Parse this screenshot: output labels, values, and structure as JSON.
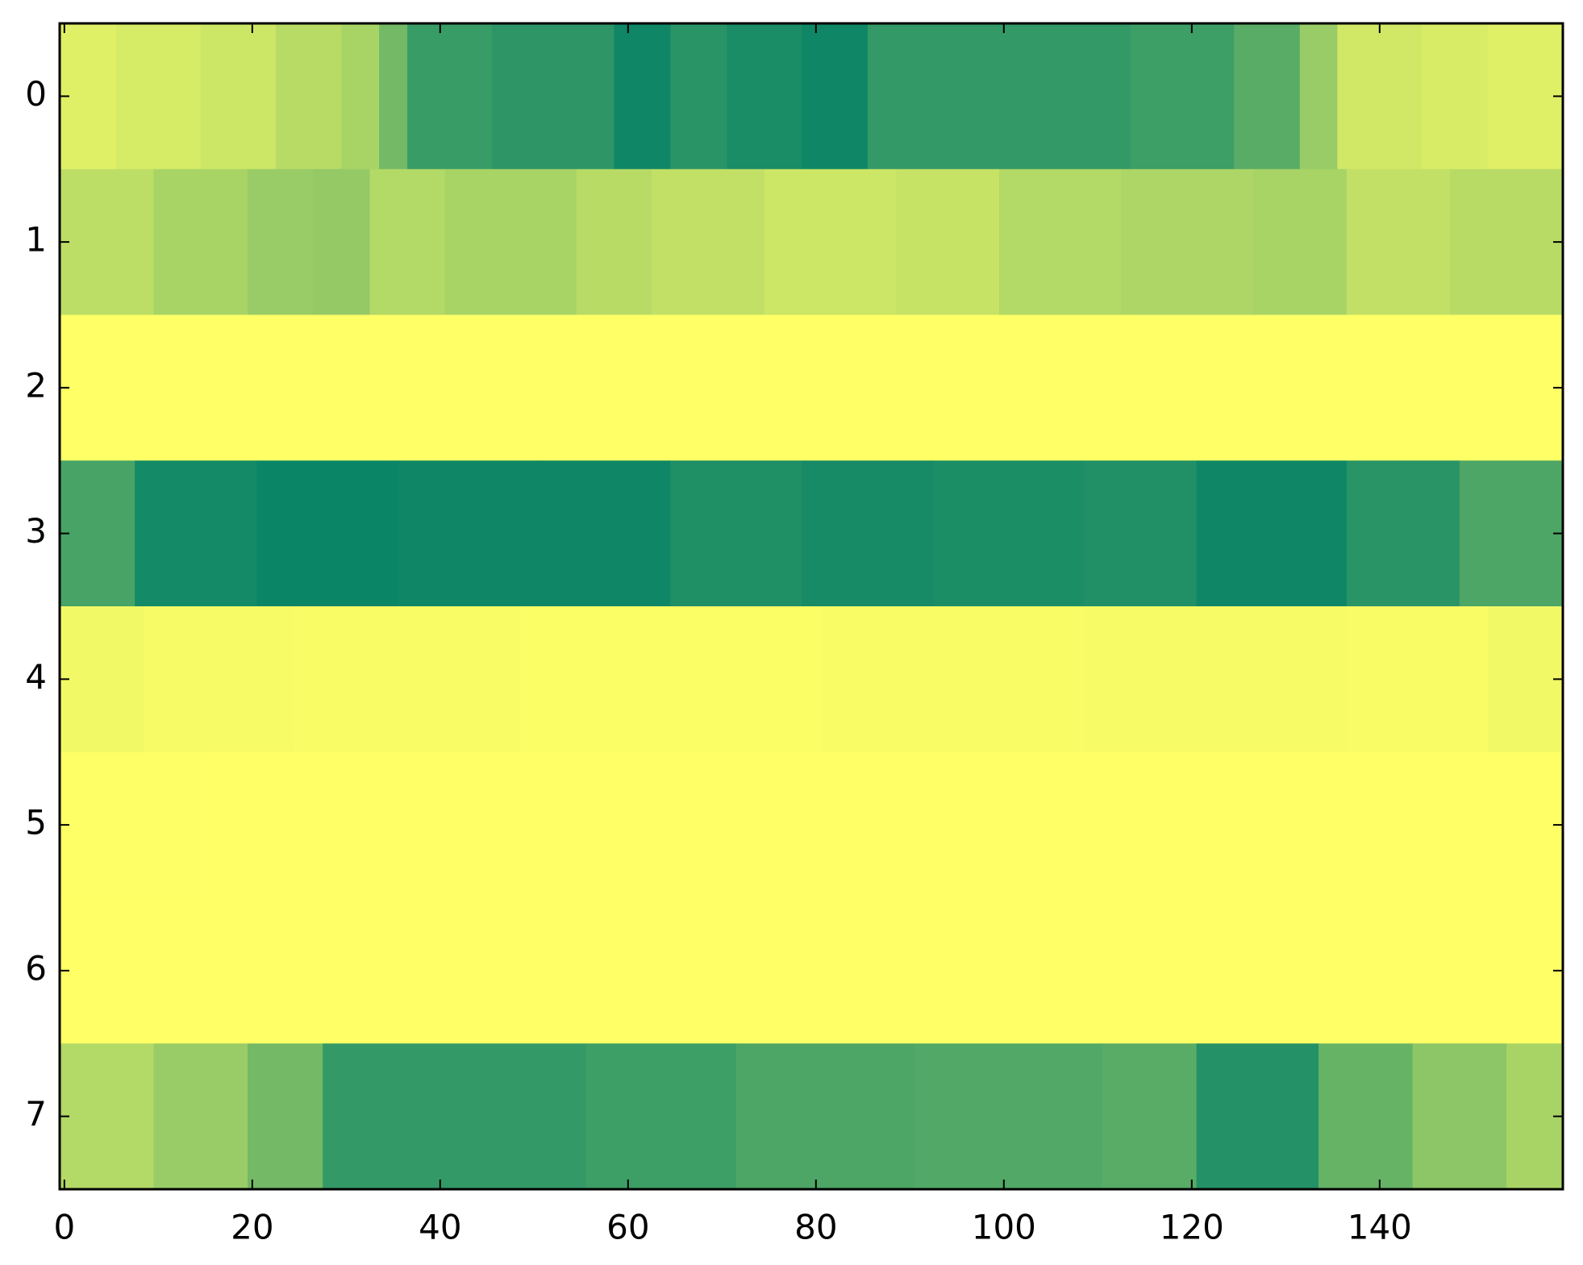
{
  "chart_data": {
    "type": "heatmap",
    "title": "",
    "xlabel": "",
    "ylabel": "",
    "colormap": "summer",
    "grid": false,
    "xlim": [
      -0.5,
      159.5
    ],
    "ylim": [
      7.5,
      -0.5
    ],
    "x_ticks": [
      0,
      20,
      40,
      60,
      80,
      100,
      120,
      140
    ],
    "x_tick_labels": [
      "0",
      "20",
      "40",
      "60",
      "80",
      "100",
      "120",
      "140"
    ],
    "y_ticks": [
      0,
      1,
      2,
      3,
      4,
      5,
      6,
      7
    ],
    "y_tick_labels": [
      "0",
      "1",
      "2",
      "3",
      "4",
      "5",
      "6",
      "7"
    ],
    "n_columns": 160,
    "rows": [
      {
        "row": 0,
        "segments": [
          {
            "from": 0,
            "to": 5,
            "level": 0.88
          },
          {
            "from": 6,
            "to": 14,
            "level": 0.84
          },
          {
            "from": 15,
            "to": 22,
            "level": 0.8
          },
          {
            "from": 23,
            "to": 29,
            "level": 0.72
          },
          {
            "from": 30,
            "to": 33,
            "level": 0.66
          },
          {
            "from": 34,
            "to": 36,
            "level": 0.45
          },
          {
            "from": 37,
            "to": 45,
            "level": 0.22
          },
          {
            "from": 46,
            "to": 58,
            "level": 0.18
          },
          {
            "from": 59,
            "to": 64,
            "level": 0.06
          },
          {
            "from": 65,
            "to": 70,
            "level": 0.16
          },
          {
            "from": 71,
            "to": 78,
            "level": 0.1
          },
          {
            "from": 79,
            "to": 85,
            "level": 0.06
          },
          {
            "from": 86,
            "to": 97,
            "level": 0.2
          },
          {
            "from": 98,
            "to": 113,
            "level": 0.2
          },
          {
            "from": 114,
            "to": 124,
            "level": 0.24
          },
          {
            "from": 125,
            "to": 131,
            "level": 0.35
          },
          {
            "from": 132,
            "to": 135,
            "level": 0.6
          },
          {
            "from": 136,
            "to": 144,
            "level": 0.82
          },
          {
            "from": 145,
            "to": 151,
            "level": 0.85
          },
          {
            "from": 152,
            "to": 159,
            "level": 0.88
          }
        ]
      },
      {
        "row": 1,
        "segments": [
          {
            "from": 0,
            "to": 9,
            "level": 0.74
          },
          {
            "from": 10,
            "to": 19,
            "level": 0.66
          },
          {
            "from": 20,
            "to": 26,
            "level": 0.6
          },
          {
            "from": 27,
            "to": 32,
            "level": 0.58
          },
          {
            "from": 33,
            "to": 40,
            "level": 0.7
          },
          {
            "from": 41,
            "to": 54,
            "level": 0.66
          },
          {
            "from": 55,
            "to": 62,
            "level": 0.72
          },
          {
            "from": 63,
            "to": 74,
            "level": 0.76
          },
          {
            "from": 75,
            "to": 88,
            "level": 0.8
          },
          {
            "from": 89,
            "to": 99,
            "level": 0.78
          },
          {
            "from": 100,
            "to": 112,
            "level": 0.7
          },
          {
            "from": 113,
            "to": 126,
            "level": 0.68
          },
          {
            "from": 127,
            "to": 136,
            "level": 0.66
          },
          {
            "from": 137,
            "to": 147,
            "level": 0.76
          },
          {
            "from": 148,
            "to": 159,
            "level": 0.72
          }
        ]
      },
      {
        "row": 2,
        "segments": [
          {
            "from": 0,
            "to": 159,
            "level": 1.0
          }
        ]
      },
      {
        "row": 3,
        "segments": [
          {
            "from": 0,
            "to": 7,
            "level": 0.28
          },
          {
            "from": 8,
            "to": 20,
            "level": 0.08
          },
          {
            "from": 21,
            "to": 35,
            "level": 0.04
          },
          {
            "from": 36,
            "to": 50,
            "level": 0.06
          },
          {
            "from": 51,
            "to": 64,
            "level": 0.06
          },
          {
            "from": 65,
            "to": 78,
            "level": 0.12
          },
          {
            "from": 79,
            "to": 92,
            "level": 0.09
          },
          {
            "from": 93,
            "to": 108,
            "level": 0.11
          },
          {
            "from": 109,
            "to": 120,
            "level": 0.13
          },
          {
            "from": 121,
            "to": 136,
            "level": 0.06
          },
          {
            "from": 137,
            "to": 148,
            "level": 0.16
          },
          {
            "from": 149,
            "to": 159,
            "level": 0.3
          }
        ]
      },
      {
        "row": 4,
        "segments": [
          {
            "from": 0,
            "to": 8,
            "level": 0.95
          },
          {
            "from": 9,
            "to": 24,
            "level": 0.97
          },
          {
            "from": 25,
            "to": 48,
            "level": 0.98
          },
          {
            "from": 49,
            "to": 80,
            "level": 0.99
          },
          {
            "from": 81,
            "to": 108,
            "level": 0.98
          },
          {
            "from": 109,
            "to": 136,
            "level": 0.97
          },
          {
            "from": 137,
            "to": 151,
            "level": 0.98
          },
          {
            "from": 152,
            "to": 159,
            "level": 0.95
          }
        ]
      },
      {
        "row": 5,
        "segments": [
          {
            "from": 0,
            "to": 14,
            "level": 0.995
          },
          {
            "from": 15,
            "to": 159,
            "level": 1.0
          }
        ]
      },
      {
        "row": 6,
        "segments": [
          {
            "from": 0,
            "to": 159,
            "level": 1.0
          }
        ]
      },
      {
        "row": 7,
        "segments": [
          {
            "from": 0,
            "to": 9,
            "level": 0.7
          },
          {
            "from": 10,
            "to": 19,
            "level": 0.6
          },
          {
            "from": 20,
            "to": 27,
            "level": 0.45
          },
          {
            "from": 28,
            "to": 40,
            "level": 0.2
          },
          {
            "from": 41,
            "to": 55,
            "level": 0.2
          },
          {
            "from": 56,
            "to": 71,
            "level": 0.24
          },
          {
            "from": 72,
            "to": 90,
            "level": 0.3
          },
          {
            "from": 91,
            "to": 110,
            "level": 0.32
          },
          {
            "from": 111,
            "to": 120,
            "level": 0.35
          },
          {
            "from": 121,
            "to": 133,
            "level": 0.14
          },
          {
            "from": 134,
            "to": 143,
            "level": 0.4
          },
          {
            "from": 144,
            "to": 153,
            "level": 0.55
          },
          {
            "from": 154,
            "to": 159,
            "level": 0.66
          }
        ]
      }
    ]
  }
}
